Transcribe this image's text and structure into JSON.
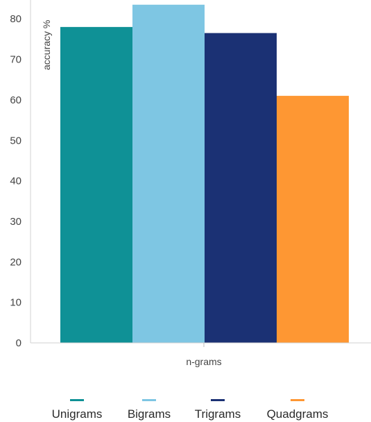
{
  "chart_data": {
    "type": "bar",
    "xlabel": "n-grams",
    "ylabel": "accuracy %",
    "ylim": [
      0,
      83.5
    ],
    "yticks": [
      0,
      10,
      20,
      30,
      40,
      50,
      60,
      70,
      80
    ],
    "grid": false,
    "legend_position": "bottom",
    "series": [
      {
        "name": "Unigrams",
        "value": 78,
        "color": "#0f9196"
      },
      {
        "name": "Bigrams",
        "value": 83.5,
        "color": "#7ec6e3"
      },
      {
        "name": "Trigrams",
        "value": 76.5,
        "color": "#1b3174"
      },
      {
        "name": "Quadgrams",
        "value": 61,
        "color": "#fe9733"
      }
    ]
  }
}
